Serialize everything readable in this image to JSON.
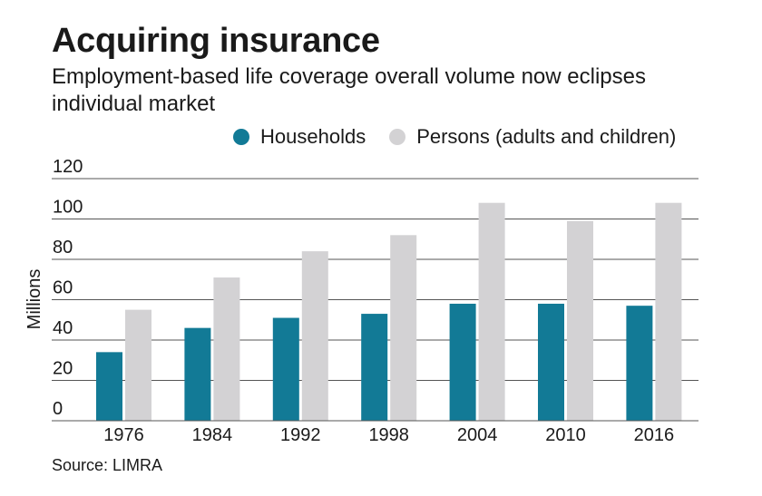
{
  "header": {
    "title": "Acquiring insurance",
    "subtitle": "Employment-based life coverage overall volume now eclipses individual market"
  },
  "source": "Source: LIMRA",
  "colors": {
    "households": "#127a96",
    "persons": "#d3d2d4",
    "gridline": "#555555"
  },
  "chart_data": {
    "type": "bar",
    "categories": [
      "1976",
      "1984",
      "1992",
      "1998",
      "2004",
      "2010",
      "2016"
    ],
    "series": [
      {
        "name": "Households",
        "values": [
          34,
          46,
          51,
          53,
          58,
          58,
          57
        ]
      },
      {
        "name": "Persons (adults and children)",
        "values": [
          55,
          71,
          84,
          92,
          108,
          99,
          108
        ]
      }
    ],
    "ylabel": "Millions",
    "ylim": [
      0,
      120
    ],
    "yticks": [
      "0",
      "20",
      "40",
      "60",
      "80",
      "100",
      "120"
    ],
    "grid": true,
    "legend": "top-right"
  }
}
